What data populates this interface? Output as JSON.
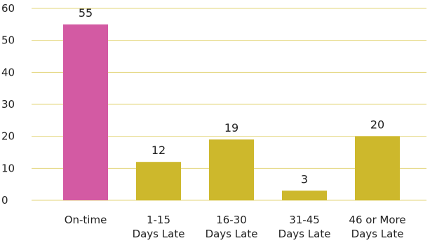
{
  "chart_data": {
    "type": "bar",
    "categories": [
      [
        "On-time"
      ],
      [
        "1-15",
        "Days Late"
      ],
      [
        "16-30",
        "Days Late"
      ],
      [
        "31-45",
        "Days Late"
      ],
      [
        "46 or More",
        "Days Late"
      ]
    ],
    "values": [
      55,
      12,
      19,
      3,
      20
    ],
    "data_labels": [
      "55",
      "12",
      "19",
      "3",
      "20"
    ],
    "yticks": [
      "0",
      "10",
      "20",
      "30",
      "40",
      "50",
      "60"
    ],
    "ylim": [
      0,
      60
    ],
    "grid": true,
    "legend": "none",
    "colors": {
      "highlight": "#d35aa3",
      "bar": "#cdb82c",
      "grid": "#e3d57a",
      "text": "#222222"
    },
    "highlight_index": 0
  }
}
